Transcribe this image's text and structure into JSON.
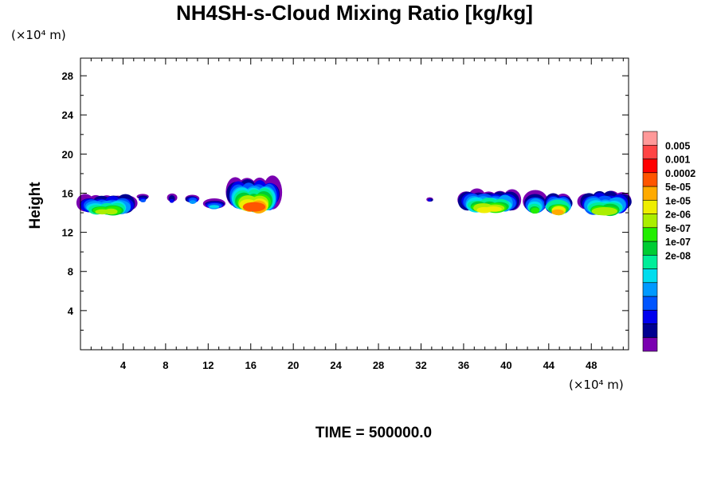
{
  "chart_data": {
    "type": "heatmap",
    "title": "NH4SH-s-Cloud Mixing Ratio [kg/kg]",
    "xlabel": "",
    "ylabel": "Height",
    "x_unit": "(×10⁴ m)",
    "y_unit": "(×10⁴ m)",
    "xlim": [
      0,
      51.5
    ],
    "ylim": [
      0,
      29.8
    ],
    "x_ticks": [
      4,
      8,
      12,
      16,
      20,
      24,
      28,
      32,
      36,
      40,
      44,
      48
    ],
    "x_tick_labels": [
      "4",
      "8",
      "12",
      "16",
      "20",
      "24",
      "28",
      "32",
      "36",
      "40",
      "44",
      "48"
    ],
    "y_ticks": [
      4,
      8,
      12,
      16,
      20,
      24,
      28
    ],
    "y_tick_labels": [
      "4",
      "8",
      "12",
      "16",
      "20",
      "24",
      "28"
    ],
    "colorbar": {
      "labels": [
        "0.005",
        "0.001",
        "0.0002",
        "5e-05",
        "1e-05",
        "2e-06",
        "5e-07",
        "1e-07",
        "2e-08"
      ],
      "colors_bottom_to_top": [
        "#7a00b0",
        "#000090",
        "#0000ee",
        "#0055ff",
        "#0099ff",
        "#00ddee",
        "#00ee99",
        "#00cc33",
        "#22ee00",
        "#aaee00",
        "#eeee00",
        "#ffaa00",
        "#ff5500",
        "#ff0000",
        "#ff4444",
        "#ff9999"
      ]
    },
    "cloud_regions": [
      {
        "x_start": 0.0,
        "x_end": 5.0,
        "z_min": 13.4,
        "z_max": 15.6,
        "level_max": 9
      },
      {
        "x_start": 5.6,
        "x_end": 6.2,
        "z_min": 15.0,
        "z_max": 15.8,
        "level_max": 3
      },
      {
        "x_start": 8.4,
        "x_end": 8.9,
        "z_min": 14.8,
        "z_max": 15.8,
        "level_max": 2
      },
      {
        "x_start": 10.1,
        "x_end": 10.9,
        "z_min": 14.8,
        "z_max": 15.8,
        "level_max": 4
      },
      {
        "x_start": 11.9,
        "x_end": 13.2,
        "z_min": 14.2,
        "z_max": 15.3,
        "level_max": 5
      },
      {
        "x_start": 14.0,
        "x_end": 18.6,
        "z_min": 13.4,
        "z_max": 17.1,
        "level_max": 12
      },
      {
        "x_start": 32.7,
        "x_end": 33.0,
        "z_min": 15.0,
        "z_max": 15.6,
        "level_max": 2
      },
      {
        "x_start": 35.7,
        "x_end": 41.1,
        "z_min": 13.6,
        "z_max": 16.0,
        "level_max": 10
      },
      {
        "x_start": 42.0,
        "x_end": 43.4,
        "z_min": 13.4,
        "z_max": 15.8,
        "level_max": 8
      },
      {
        "x_start": 43.9,
        "x_end": 45.9,
        "z_min": 13.4,
        "z_max": 15.7,
        "level_max": 11
      },
      {
        "x_start": 47.1,
        "x_end": 51.5,
        "z_min": 13.3,
        "z_max": 15.9,
        "level_max": 9
      }
    ]
  },
  "footer": {
    "time_label": "TIME = 500000.0"
  }
}
